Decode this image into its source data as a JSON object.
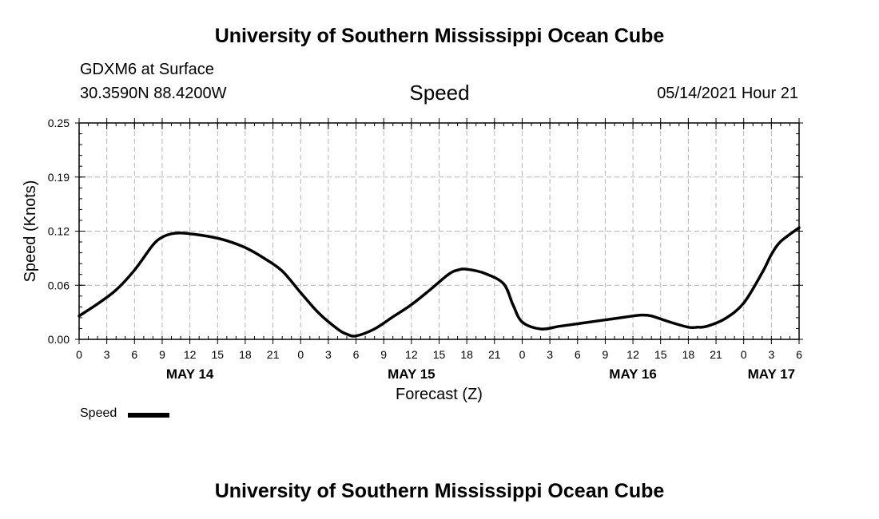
{
  "header": {
    "title": "University of Southern Mississippi Ocean Cube",
    "station": "GDXM6 at Surface",
    "coords": "30.3590N  88.4200W",
    "variable": "Speed",
    "datetime": "05/14/2021 Hour 21"
  },
  "footer": {
    "title": "University of Southern Mississippi Ocean Cube"
  },
  "legend": {
    "label": "Speed",
    "color": "#000000"
  },
  "chart_data": {
    "type": "line",
    "title": "Speed",
    "xlabel": "Forecast (Z)",
    "ylabel": "Speed (Knots)",
    "xlim": [
      0,
      78
    ],
    "ylim": [
      0,
      0.25
    ],
    "grid": true,
    "y_ticks": [
      "0.00",
      "0.06",
      "0.12",
      "0.19",
      "0.25"
    ],
    "y_tick_values": [
      0,
      0.0625,
      0.125,
      0.1875,
      0.25
    ],
    "x_tick_hours": [
      0,
      3,
      6,
      9,
      12,
      15,
      18,
      21,
      24,
      27,
      30,
      33,
      36,
      39,
      42,
      45,
      48,
      51,
      54,
      57,
      60,
      63,
      66,
      69,
      72,
      75,
      78
    ],
    "x_tick_labels": [
      "0",
      "3",
      "6",
      "9",
      "12",
      "15",
      "18",
      "21",
      "0",
      "3",
      "6",
      "9",
      "12",
      "15",
      "18",
      "21",
      "0",
      "3",
      "6",
      "9",
      "12",
      "15",
      "18",
      "21",
      "0",
      "3",
      "6"
    ],
    "date_labels": [
      {
        "label": "MAY 14",
        "hour": 12
      },
      {
        "label": "MAY 15",
        "hour": 36
      },
      {
        "label": "MAY 16",
        "hour": 60
      },
      {
        "label": "MAY 17",
        "hour": 75
      }
    ],
    "series": [
      {
        "name": "Speed",
        "x": [
          0,
          2,
          4,
          6,
          8,
          9,
          10,
          11,
          12,
          14,
          16,
          18,
          20,
          22,
          24,
          26,
          28,
          29,
          30,
          32,
          34,
          36,
          38,
          40,
          41,
          42,
          44,
          46,
          47,
          48,
          50,
          52,
          54,
          56,
          58,
          60,
          61,
          62,
          64,
          66,
          67,
          68,
          70,
          72,
          74,
          75,
          76,
          78
        ],
        "y": [
          0.027,
          0.041,
          0.057,
          0.08,
          0.109,
          0.118,
          0.122,
          0.123,
          0.122,
          0.119,
          0.114,
          0.106,
          0.094,
          0.079,
          0.054,
          0.03,
          0.012,
          0.006,
          0.004,
          0.012,
          0.026,
          0.04,
          0.057,
          0.075,
          0.08,
          0.081,
          0.076,
          0.064,
          0.04,
          0.02,
          0.012,
          0.015,
          0.018,
          0.021,
          0.024,
          0.027,
          0.028,
          0.027,
          0.02,
          0.014,
          0.014,
          0.015,
          0.024,
          0.042,
          0.077,
          0.098,
          0.113,
          0.129
        ]
      }
    ]
  }
}
